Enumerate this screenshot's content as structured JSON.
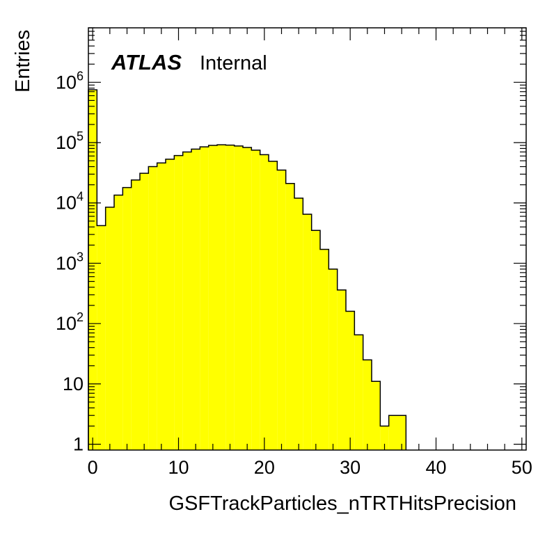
{
  "chart_data": {
    "type": "bar",
    "subtype": "histogram",
    "xlabel": "GSFTrackParticles_nTRTHitsPrecision",
    "ylabel": "Entries",
    "label_bold": "ATLAS",
    "label_plain": "Internal",
    "xlim": [
      -0.5,
      50.5
    ],
    "ylim": [
      0.8,
      8000000
    ],
    "yscale": "log",
    "bin_width": 1,
    "x_ticks": [
      "0",
      "10",
      "20",
      "30",
      "40",
      "50"
    ],
    "y_ticks": [
      {
        "base": "1",
        "exp": ""
      },
      {
        "base": "10",
        "exp": ""
      },
      {
        "base": "10",
        "exp": "2"
      },
      {
        "base": "10",
        "exp": "3"
      },
      {
        "base": "10",
        "exp": "4"
      },
      {
        "base": "10",
        "exp": "5"
      },
      {
        "base": "10",
        "exp": "6"
      }
    ],
    "bin_edges_start": -0.5,
    "values": [
      750000,
      4200,
      8500,
      13500,
      18000,
      24000,
      31000,
      40000,
      46000,
      53000,
      61000,
      70000,
      78000,
      85000,
      90000,
      92000,
      91000,
      88000,
      83000,
      75000,
      63000,
      49000,
      35000,
      21000,
      12000,
      6500,
      3500,
      1700,
      800,
      360,
      160,
      65,
      25,
      11,
      2,
      3,
      3
    ],
    "fill_color": "#ffff00",
    "line_color": "#000000",
    "legend": "none",
    "grid": false
  }
}
